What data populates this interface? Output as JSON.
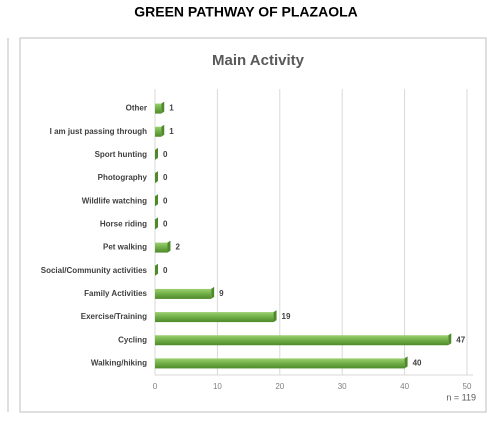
{
  "page_title": "GREEN PATHWAY OF PLAZAOLA",
  "chart_data": {
    "type": "barh",
    "title": "Main Activity",
    "categories": [
      "Other",
      "I am just passing through",
      "Sport hunting",
      "Photography",
      "Wildlife watching",
      "Horse riding",
      "Pet walking",
      "Social/Community activities",
      "Family Activities",
      "Exercise/Training",
      "Cycling",
      "Walking/hiking"
    ],
    "values": [
      1,
      1,
      0,
      0,
      0,
      0,
      2,
      0,
      9,
      19,
      47,
      40
    ],
    "color": "#70ad47",
    "xlim": [
      0,
      50
    ],
    "xticks": [
      0,
      10,
      20,
      30,
      40,
      50
    ],
    "grid": true,
    "annotation": "n = 119"
  }
}
